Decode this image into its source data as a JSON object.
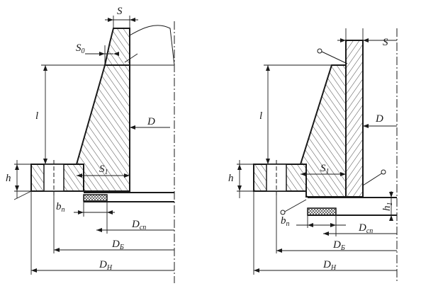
{
  "left": {
    "labels": {
      "s": "S",
      "s0": "S",
      "s0_sub": "0",
      "l": "l",
      "d": "D",
      "s1": "S",
      "s1_sub": "1",
      "h": "h",
      "bn": "b",
      "bn_sub": "п",
      "dsp": "D",
      "dsp_sub": "сп",
      "db": "D",
      "db_sub": "Б",
      "dn": "D",
      "dn_sub": "Н"
    }
  },
  "right": {
    "labels": {
      "s": "S",
      "l": "l",
      "d": "D",
      "s1": "S",
      "s1_sub": "1",
      "h": "h",
      "h1": "h",
      "h1_sub": "1",
      "bn": "b",
      "bn_sub": "п",
      "dsp": "D",
      "dsp_sub": "сп",
      "db": "D",
      "db_sub": "Б",
      "dn": "D",
      "dn_sub": "Н"
    }
  }
}
